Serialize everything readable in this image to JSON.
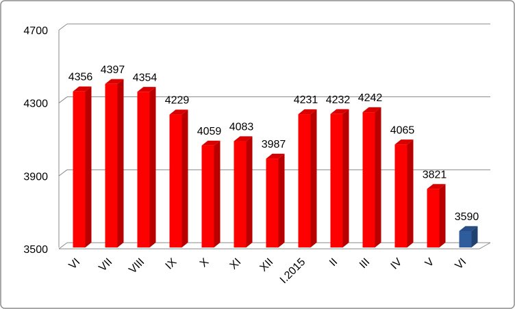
{
  "chart_data": {
    "type": "bar3d",
    "categories": [
      "VI",
      "VII",
      "VIII",
      "IX",
      "X",
      "XI",
      "XII",
      "I.2015",
      "II",
      "III",
      "IV",
      "V",
      "VI"
    ],
    "values": [
      4356,
      4397,
      4354,
      4229,
      4059,
      4083,
      3987,
      4231,
      4232,
      4242,
      4065,
      3821,
      3590
    ],
    "colors": [
      "#ff0000",
      "#ff0000",
      "#ff0000",
      "#ff0000",
      "#ff0000",
      "#ff0000",
      "#ff0000",
      "#ff0000",
      "#ff0000",
      "#ff0000",
      "#ff0000",
      "#ff0000",
      "#2e5c9c"
    ],
    "ylim": [
      3500,
      4700
    ],
    "yticks": [
      3500,
      3900,
      4300,
      4700
    ],
    "grid": true
  }
}
